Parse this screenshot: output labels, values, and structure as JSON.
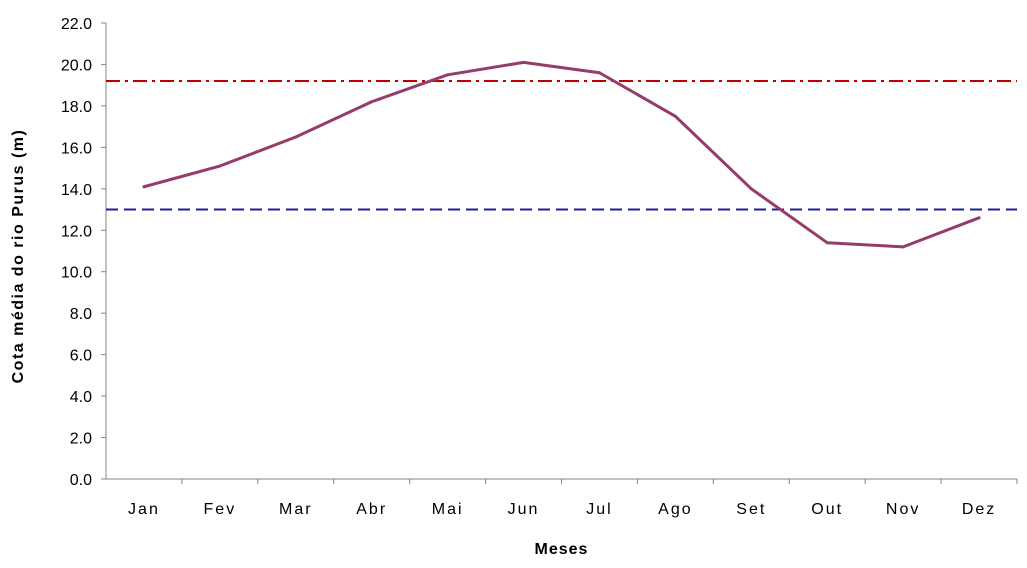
{
  "chart_data": {
    "type": "line",
    "title": "",
    "xlabel": "Meses",
    "ylabel": "Cota média do rio Purus (m)",
    "categories": [
      "Jan",
      "Fev",
      "Mar",
      "Abr",
      "Mai",
      "Jun",
      "Jul",
      "Ago",
      "Set",
      "Out",
      "Nov",
      "Dez"
    ],
    "ylim": [
      0,
      22
    ],
    "yticks": [
      "0.0",
      "2.0",
      "4.0",
      "6.0",
      "8.0",
      "10.0",
      "12.0",
      "14.0",
      "16.0",
      "18.0",
      "20.0",
      "22.0"
    ],
    "grid": false,
    "series": [
      {
        "values": [
          14.1,
          15.1,
          16.5,
          18.2,
          19.5,
          20.1,
          19.6,
          17.5,
          14.0,
          11.4,
          11.2,
          12.6
        ],
        "color": "#953C6A",
        "style": "solid"
      }
    ],
    "reference_lines": [
      {
        "value": 19.2,
        "color": "#C00000",
        "style": "dash-dot"
      },
      {
        "value": 13.0,
        "color": "#1F1F9F",
        "style": "dashed"
      }
    ]
  }
}
